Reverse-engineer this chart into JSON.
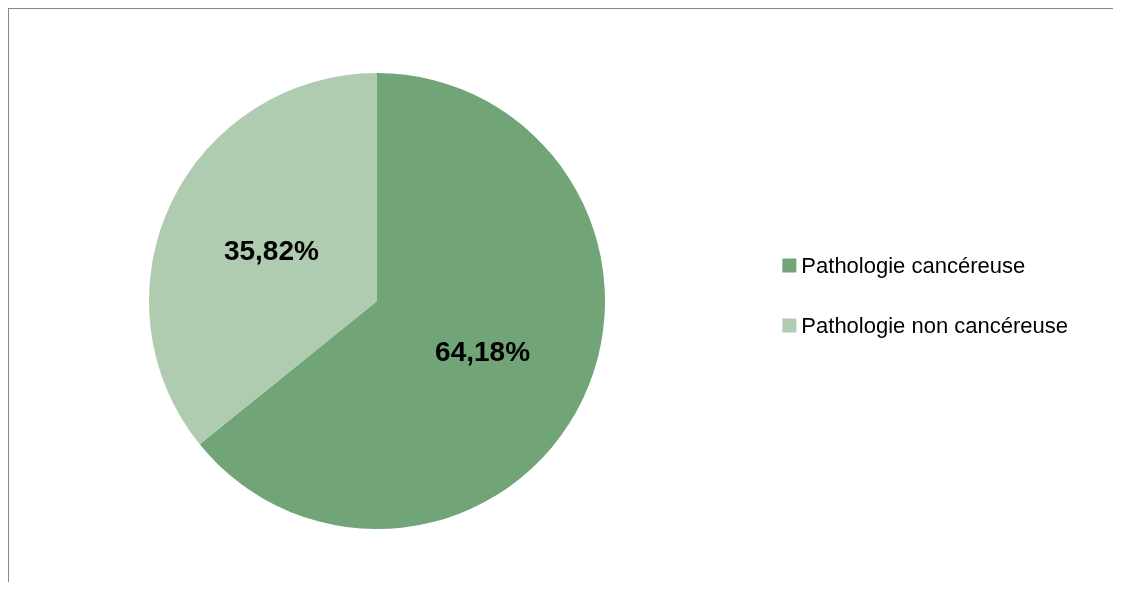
{
  "chart_data": {
    "type": "pie",
    "categories": [
      "Pathologie cancéreuse",
      "Pathologie non cancéreuse"
    ],
    "values": [
      64.18,
      35.82
    ],
    "colors": [
      "#71a476",
      "#afcbb0"
    ],
    "value_labels": [
      "64,18%",
      "35,82%"
    ],
    "legend": "right"
  }
}
